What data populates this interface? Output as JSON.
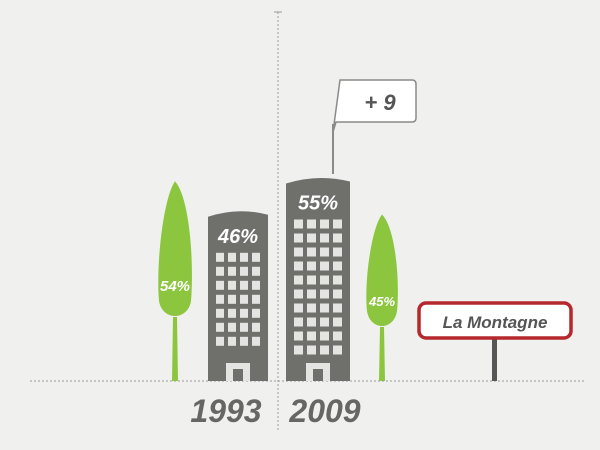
{
  "chart_data": {
    "type": "bar",
    "categories": [
      "1993",
      "2009"
    ],
    "series": [
      {
        "values": [
          46,
          55
        ]
      },
      {
        "values": [
          54,
          45
        ]
      }
    ],
    "annotation": "+ 9",
    "sign_label": "La Montagne",
    "colors": {
      "building": "#6f6f6c",
      "tree": "#8cc63f",
      "sign_border": "#b5282e",
      "background": "#f0f0ee"
    }
  }
}
